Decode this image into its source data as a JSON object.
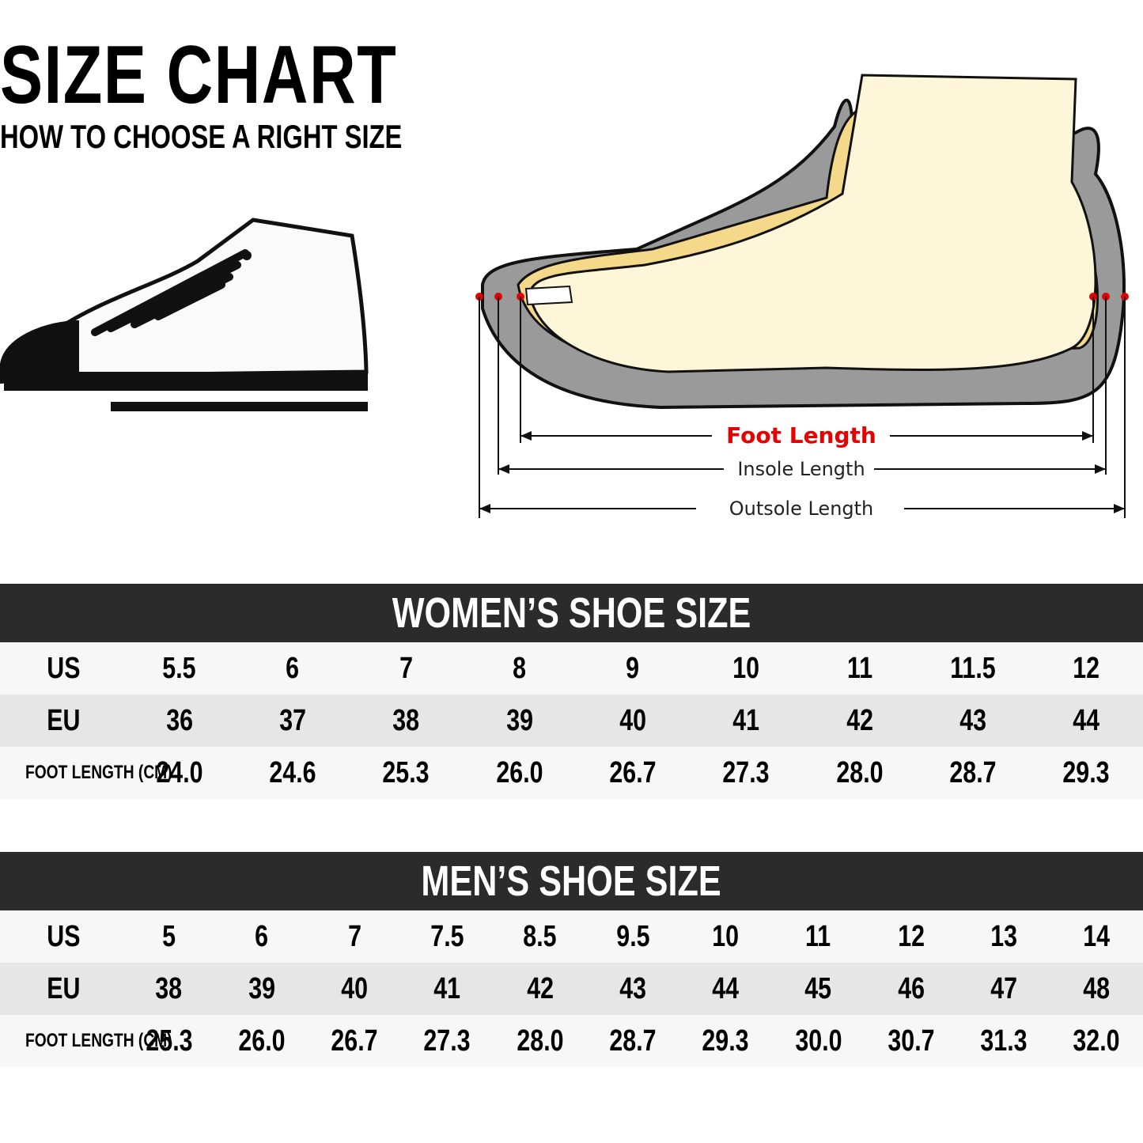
{
  "header": {
    "title": "SIZE CHART",
    "subtitle": "HOW TO CHOOSE A RIGHT SIZE"
  },
  "diagram": {
    "foot_length": "Foot Length",
    "insole_length": "Insole Length",
    "outsole_length": "Outsole Length"
  },
  "tables": [
    {
      "title": "WOMEN’S SHOE SIZE",
      "rows": [
        [
          "US",
          "5.5",
          "6",
          "7",
          "8",
          "9",
          "10",
          "11",
          "11.5",
          "12"
        ],
        [
          "EU",
          "36",
          "37",
          "38",
          "39",
          "40",
          "41",
          "42",
          "43",
          "44"
        ],
        [
          "FOOT LENGTH (CM)",
          "24.0",
          "24.6",
          "25.3",
          "26.0",
          "26.7",
          "27.3",
          "28.0",
          "28.7",
          "29.3"
        ]
      ]
    },
    {
      "title": "MEN’S SHOE SIZE",
      "rows": [
        [
          "US",
          "5",
          "6",
          "7",
          "7.5",
          "8.5",
          "9.5",
          "10",
          "11",
          "12",
          "13",
          "14"
        ],
        [
          "EU",
          "38",
          "39",
          "40",
          "41",
          "42",
          "43",
          "44",
          "45",
          "46",
          "47",
          "48"
        ],
        [
          "FOOT LENGTH (CM)",
          "25.3",
          "26.0",
          "26.7",
          "27.3",
          "28.0",
          "28.7",
          "29.3",
          "30.0",
          "30.7",
          "31.3",
          "32.0"
        ]
      ]
    }
  ]
}
